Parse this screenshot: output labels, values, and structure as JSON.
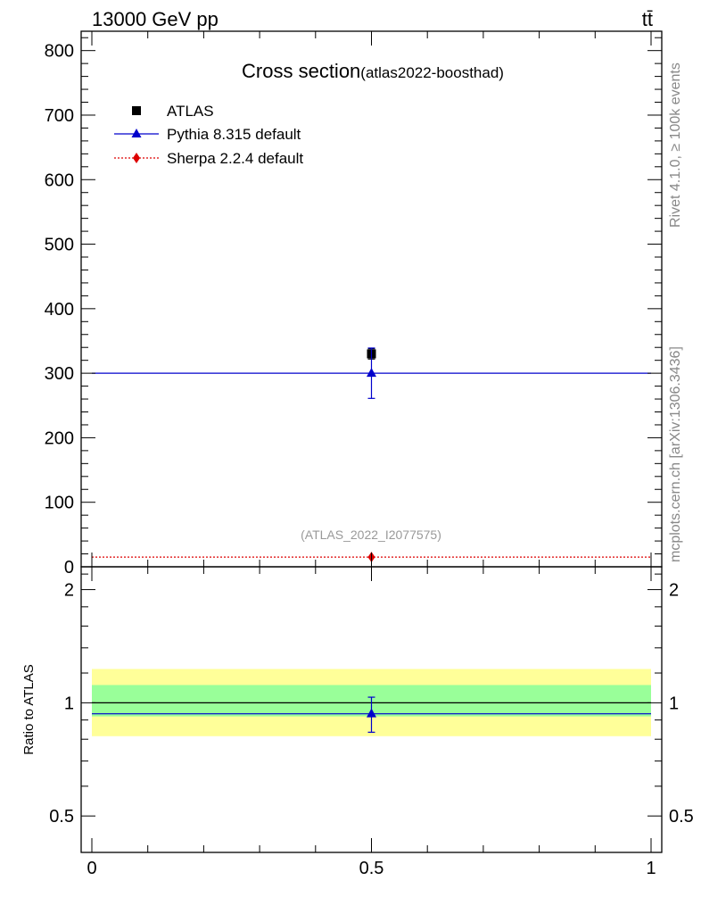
{
  "header": {
    "energy_label": "13000 GeV pp",
    "process_label": "tt̄"
  },
  "side_labels": {
    "rivet": "Rivet 4.1.0, ≥ 100k events",
    "mcplots": "mcplots.cern.ch [arXiv:1306.3436]"
  },
  "chart_data": [
    {
      "type": "scatter",
      "title": "Cross section",
      "subtitle": "(atlas2022-boosthad)",
      "watermark": "(ATLAS_2022_I2077575)",
      "xlim": [
        0,
        1
      ],
      "ylim": [
        0,
        830
      ],
      "y_ticks": [
        0,
        100,
        200,
        300,
        400,
        500,
        600,
        700,
        800
      ],
      "y_tick_labels": [
        "0",
        "100",
        "200",
        "300",
        "400",
        "500",
        "600",
        "700",
        "800"
      ],
      "legend_position": "top-left",
      "series": [
        {
          "name": "ATLAS",
          "marker": "square",
          "color": "#000000",
          "points": [
            {
              "x": 0.5,
              "y": 330,
              "err": 8
            }
          ]
        },
        {
          "name": "Pythia 8.315 default",
          "marker": "triangle",
          "color": "#0000cc",
          "line": "solid",
          "line_y": 300,
          "points": [
            {
              "x": 0.5,
              "y": 300,
              "err_low": 39,
              "err_high": 39
            }
          ]
        },
        {
          "name": "Sherpa 2.2.4 default",
          "marker": "diamond",
          "color": "#dd0000",
          "line": "dotted",
          "line_y": 15,
          "points": [
            {
              "x": 0.5,
              "y": 15
            }
          ]
        }
      ]
    },
    {
      "type": "scatter",
      "ylabel": "Ratio to ATLAS",
      "log_y": true,
      "xlim": [
        0,
        1
      ],
      "ylim": [
        0.4,
        2.3
      ],
      "y_ticks": [
        0.5,
        1,
        2
      ],
      "y_tick_labels": [
        "0.5",
        "1",
        "2"
      ],
      "x_ticks": [
        0,
        0.5,
        1
      ],
      "x_tick_labels": [
        "0",
        "0.5",
        "1"
      ],
      "bands": [
        {
          "color": "#ffff99",
          "low": 0.815,
          "high": 1.23
        },
        {
          "color": "#99ff99",
          "low": 0.92,
          "high": 1.115
        }
      ],
      "reference_y": 1,
      "series": [
        {
          "name": "Pythia 8.315 default",
          "color": "#0000cc",
          "line_y": 0.935,
          "points": [
            {
              "x": 0.5,
              "y": 0.935,
              "err_low": 0.1,
              "err_high": 0.1
            }
          ]
        }
      ]
    }
  ]
}
